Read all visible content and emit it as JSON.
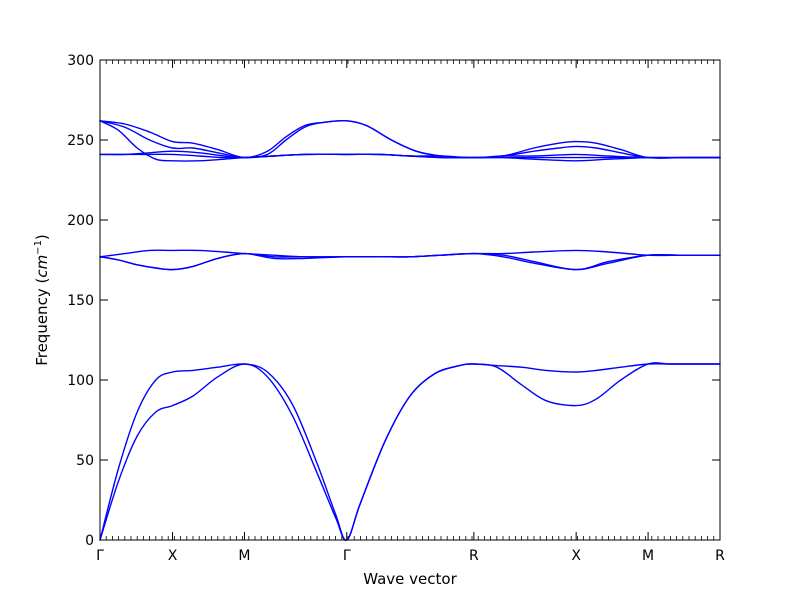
{
  "chart_data": {
    "type": "line",
    "title": "",
    "xlabel": "Wave vector",
    "ylabel": "Frequency (cm⁻¹)",
    "ylabel_prefix": "Frequency (",
    "ylabel_math": "cm",
    "ylabel_sup": "−1",
    "ylabel_suffix": ")",
    "ylim": [
      0,
      300
    ],
    "y_ticks": [
      0,
      50,
      100,
      150,
      200,
      250,
      300
    ],
    "x_range": [
      0,
      1
    ],
    "x_ticks": [
      {
        "pos": 0.0,
        "label": "Γ"
      },
      {
        "pos": 0.117,
        "label": "X"
      },
      {
        "pos": 0.233,
        "label": "M"
      },
      {
        "pos": 0.398,
        "label": "Γ"
      },
      {
        "pos": 0.603,
        "label": "R"
      },
      {
        "pos": 0.768,
        "label": "X"
      },
      {
        "pos": 0.884,
        "label": "M"
      },
      {
        "pos": 1.0,
        "label": "R"
      }
    ],
    "line_color": "#0000ff",
    "grid": false,
    "series": [
      {
        "x": [
          0,
          0.03,
          0.06,
          0.09,
          0.117,
          0.15,
          0.19,
          0.233,
          0.27,
          0.31,
          0.35,
          0.38,
          0.398,
          0.42,
          0.46,
          0.5,
          0.54,
          0.58,
          0.603,
          0.64,
          0.68,
          0.72,
          0.768,
          0.8,
          0.84,
          0.884,
          0.92,
          0.96,
          1.0
        ],
        "y": [
          0,
          37,
          65,
          80,
          84,
          90,
          102,
          110,
          102,
          78,
          42,
          14,
          0,
          23,
          62,
          90,
          104,
          109,
          110,
          108,
          97,
          87,
          84,
          88,
          100,
          110,
          110,
          110,
          110
        ]
      },
      {
        "x": [
          0,
          0.03,
          0.06,
          0.09,
          0.117,
          0.15,
          0.19,
          0.233,
          0.27,
          0.31,
          0.35,
          0.38,
          0.398,
          0.42,
          0.46,
          0.5,
          0.54,
          0.58,
          0.603,
          0.64,
          0.68,
          0.72,
          0.768,
          0.8,
          0.84,
          0.884,
          0.92,
          0.96,
          1.0
        ],
        "y": [
          0,
          45,
          80,
          100,
          105,
          106,
          108,
          110,
          105,
          85,
          48,
          16,
          0,
          23,
          62,
          90,
          104,
          109,
          110,
          109,
          108,
          106,
          105,
          106,
          108,
          110,
          110,
          110,
          110
        ]
      },
      {
        "x": [
          0,
          0.03,
          0.06,
          0.09,
          0.117,
          0.15,
          0.19,
          0.233,
          0.28,
          0.33,
          0.398,
          0.45,
          0.5,
          0.55,
          0.603,
          0.65,
          0.7,
          0.768,
          0.82,
          0.884,
          0.94,
          1.0
        ],
        "y": [
          177,
          175,
          172,
          170,
          169,
          171,
          176,
          179,
          176,
          176,
          177,
          177,
          177,
          178,
          179,
          177,
          173,
          169,
          173,
          178,
          178,
          178
        ]
      },
      {
        "x": [
          0,
          0.03,
          0.06,
          0.09,
          0.117,
          0.15,
          0.19,
          0.233,
          0.28,
          0.33,
          0.398,
          0.45,
          0.5,
          0.55,
          0.603,
          0.65,
          0.7,
          0.768,
          0.82,
          0.884,
          0.94,
          1.0
        ],
        "y": [
          177,
          175,
          172,
          170,
          169,
          171,
          176,
          179,
          177,
          177,
          177,
          177,
          177,
          178,
          179,
          178,
          174,
          169,
          174,
          178,
          178,
          178
        ]
      },
      {
        "x": [
          0,
          0.04,
          0.08,
          0.117,
          0.16,
          0.2,
          0.233,
          0.28,
          0.33,
          0.398,
          0.45,
          0.5,
          0.55,
          0.603,
          0.65,
          0.7,
          0.768,
          0.82,
          0.884,
          0.94,
          1.0
        ],
        "y": [
          177,
          179,
          181,
          181,
          181,
          180,
          179,
          178,
          177,
          177,
          177,
          177,
          178,
          179,
          179,
          180,
          181,
          180,
          178,
          178,
          178
        ]
      },
      {
        "x": [
          0,
          0.03,
          0.06,
          0.09,
          0.117,
          0.16,
          0.2,
          0.233,
          0.28,
          0.33,
          0.398,
          0.45,
          0.5,
          0.55,
          0.603,
          0.65,
          0.7,
          0.768,
          0.82,
          0.884,
          0.94,
          1.0
        ],
        "y": [
          262,
          256,
          245,
          238,
          237,
          237,
          238,
          239,
          240,
          241,
          241,
          241,
          240,
          239,
          239,
          239,
          238,
          237,
          238,
          239,
          239,
          239
        ]
      },
      {
        "x": [
          0,
          0.04,
          0.08,
          0.117,
          0.15,
          0.19,
          0.233,
          0.27,
          0.3,
          0.33,
          0.36,
          0.398,
          0.43,
          0.47,
          0.51,
          0.55,
          0.603,
          0.65,
          0.7,
          0.74,
          0.768,
          0.8,
          0.84,
          0.884,
          0.94,
          1.0
        ],
        "y": [
          262,
          260,
          255,
          249,
          248,
          244,
          239,
          243,
          252,
          259,
          261,
          262,
          259,
          250,
          243,
          240,
          239,
          240,
          245,
          248,
          249,
          248,
          244,
          239,
          239,
          239
        ]
      },
      {
        "x": [
          0,
          0.04,
          0.08,
          0.117,
          0.15,
          0.19,
          0.233,
          0.27,
          0.3,
          0.33,
          0.36,
          0.398,
          0.43,
          0.47,
          0.51,
          0.55,
          0.603,
          0.65,
          0.7,
          0.74,
          0.768,
          0.8,
          0.84,
          0.884,
          0.94,
          1.0
        ],
        "y": [
          262,
          258,
          250,
          245,
          245,
          242,
          239,
          241,
          250,
          258,
          261,
          262,
          259,
          250,
          243,
          240,
          239,
          240,
          243,
          245,
          246,
          245,
          242,
          239,
          239,
          239
        ]
      },
      {
        "x": [
          0,
          0.04,
          0.08,
          0.117,
          0.16,
          0.2,
          0.233,
          0.28,
          0.33,
          0.398,
          0.45,
          0.5,
          0.55,
          0.603,
          0.65,
          0.7,
          0.768,
          0.82,
          0.884,
          0.94,
          1.0
        ],
        "y": [
          241,
          241,
          242,
          243,
          242,
          240,
          239,
          240,
          241,
          241,
          241,
          240,
          240,
          239,
          240,
          240,
          241,
          240,
          239,
          239,
          239
        ]
      },
      {
        "x": [
          0,
          0.04,
          0.08,
          0.117,
          0.16,
          0.2,
          0.233,
          0.28,
          0.33,
          0.398,
          0.45,
          0.5,
          0.55,
          0.603,
          0.65,
          0.7,
          0.768,
          0.82,
          0.884,
          0.94,
          1.0
        ],
        "y": [
          241,
          241,
          241,
          241,
          240,
          239,
          239,
          240,
          241,
          241,
          241,
          240,
          239,
          239,
          239,
          239,
          239,
          239,
          239,
          239,
          239
        ]
      }
    ]
  }
}
